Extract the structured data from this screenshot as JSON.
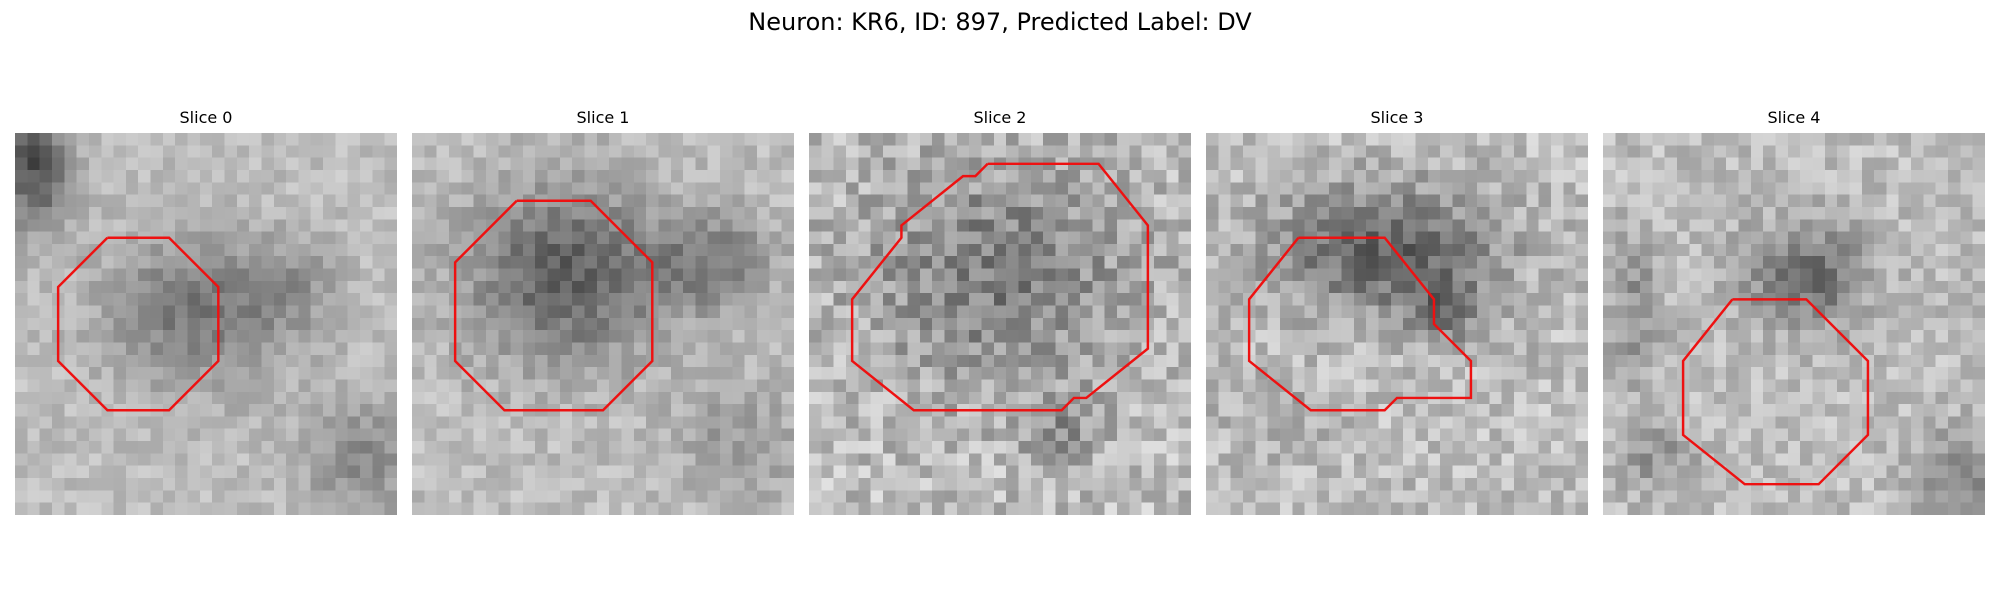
{
  "figure": {
    "title": "Neuron: KR6, ID: 897, Predicted Label: DV"
  },
  "panels": [
    {
      "title": "Slice 0"
    },
    {
      "title": "Slice 1"
    },
    {
      "title": "Slice 2"
    },
    {
      "title": "Slice 3"
    },
    {
      "title": "Slice 4"
    }
  ],
  "colors": {
    "contour": "#ee1111",
    "background": "#ffffff"
  }
}
